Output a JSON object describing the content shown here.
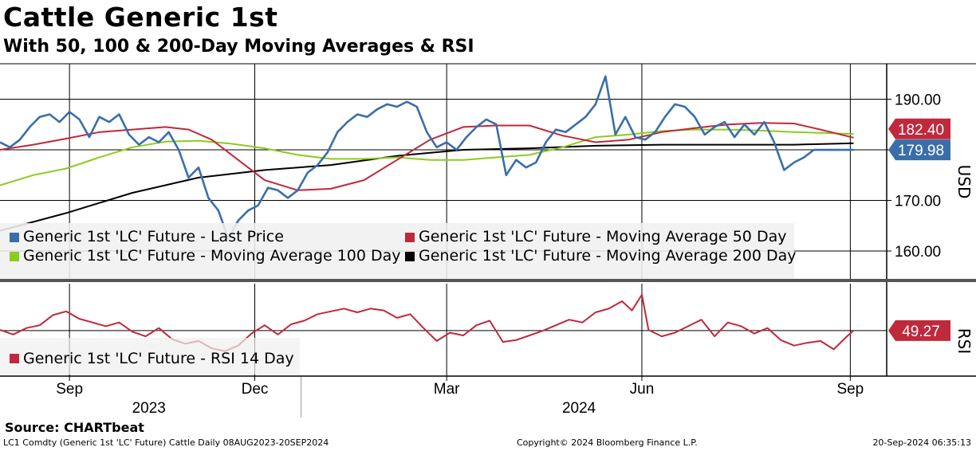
{
  "header": {
    "title": "Cattle Generic 1st",
    "subtitle": "With 50, 100 & 200-Day Moving Averages & RSI"
  },
  "footer": {
    "source": "Source: CHARTbeat",
    "ticker_info": "LC1 Comdty (Generic 1st 'LC' Future) Cattle  Daily 08AUG2023-20SEP2024",
    "copyright": "Copyright© 2024 Bloomberg Finance L.P.",
    "timestamp": "20-Sep-2024 06:35:13"
  },
  "colors": {
    "last_price": "#3a6ea8",
    "ma50": "#c0283c",
    "ma100": "#8ccc1e",
    "ma200": "#000000",
    "rsi": "#c0283c",
    "rsi_fade": "#e8aab3"
  },
  "chart_data": [
    {
      "type": "line",
      "panel": "price",
      "ylabel": "USD",
      "ylim": [
        154.5,
        197
      ],
      "y_ticks": [
        "160.00",
        "170.00",
        "180.00",
        "190.00"
      ],
      "y_tick_values": [
        160,
        170,
        180,
        190
      ],
      "x_range": [
        0,
        13.4
      ],
      "x_unit": "months since 2023-08-08",
      "x_ticks": [
        {
          "label": "Sep",
          "x": 1.05
        },
        {
          "label": "Dec",
          "x": 3.85
        },
        {
          "label": "Mar",
          "x": 6.75
        },
        {
          "label": "Jun",
          "x": 9.7
        },
        {
          "label": "Sep",
          "x": 12.85
        }
      ],
      "year_labels": [
        {
          "label": "2023",
          "x": 2.25
        },
        {
          "label": "2024",
          "x": 8.75
        }
      ],
      "year_divider_x": 4.55,
      "legend": [
        "Generic 1st 'LC' Future - Last Price",
        "Generic 1st 'LC' Future - Moving Average 50 Day",
        "Generic 1st 'LC' Future - Moving Average 100 Day",
        "Generic 1st 'LC' Future - Moving Average 200 Day"
      ],
      "series": [
        {
          "name": "Generic 1st 'LC' Future - Last Price",
          "key": "last_price",
          "x": [
            0,
            0.15,
            0.3,
            0.45,
            0.6,
            0.75,
            0.9,
            1.05,
            1.2,
            1.35,
            1.5,
            1.65,
            1.8,
            1.95,
            2.1,
            2.25,
            2.4,
            2.55,
            2.7,
            2.85,
            3.0,
            3.15,
            3.3,
            3.45,
            3.6,
            3.75,
            3.9,
            4.05,
            4.2,
            4.35,
            4.5,
            4.65,
            4.8,
            4.95,
            5.1,
            5.25,
            5.4,
            5.55,
            5.7,
            5.85,
            6.0,
            6.15,
            6.3,
            6.45,
            6.6,
            6.75,
            6.9,
            7.05,
            7.2,
            7.35,
            7.5,
            7.65,
            7.8,
            7.95,
            8.1,
            8.25,
            8.4,
            8.55,
            8.7,
            8.85,
            9.0,
            9.15,
            9.3,
            9.45,
            9.6,
            9.75,
            9.9,
            10.05,
            10.2,
            10.35,
            10.5,
            10.65,
            10.8,
            10.95,
            11.1,
            11.25,
            11.4,
            11.55,
            11.7,
            11.85,
            12.0,
            12.15,
            12.3,
            12.45,
            12.6,
            12.75,
            12.9
          ],
          "values": [
            181.5,
            180.5,
            182.0,
            184.5,
            186.5,
            187.0,
            185.5,
            187.5,
            186.0,
            182.5,
            186.5,
            185.5,
            187.0,
            183.0,
            181.0,
            182.5,
            181.5,
            183.5,
            180.0,
            174.5,
            176.5,
            170.5,
            168.0,
            162.5,
            166.0,
            168.0,
            169.0,
            172.5,
            172.0,
            170.5,
            172.0,
            175.5,
            177.0,
            179.5,
            183.5,
            185.5,
            187.0,
            186.5,
            188.0,
            189.0,
            188.5,
            189.5,
            188.5,
            183.5,
            180.5,
            181.5,
            180.0,
            182.5,
            184.5,
            186.0,
            185.0,
            175.0,
            178.0,
            176.5,
            177.5,
            181.5,
            184.0,
            183.5,
            185.0,
            186.5,
            189.0,
            194.5,
            183.0,
            186.5,
            182.5,
            182.0,
            183.5,
            186.5,
            189.0,
            188.5,
            186.5,
            183.0,
            184.5,
            185.5,
            182.5,
            185.0,
            183.0,
            185.5,
            181.5,
            176.0,
            177.5,
            178.5,
            180.0,
            179.98,
            179.98,
            179.98,
            179.98
          ]
        },
        {
          "name": "Generic 1st 'LC' Future - Moving Average 50 Day",
          "key": "ma50",
          "x": [
            0,
            0.5,
            1.0,
            1.5,
            2.0,
            2.5,
            2.85,
            3.2,
            3.6,
            4.0,
            4.5,
            5.0,
            5.5,
            6.0,
            6.5,
            7.0,
            7.5,
            8.0,
            8.5,
            9.0,
            9.5,
            10.0,
            10.5,
            11.0,
            11.5,
            12.0,
            12.4,
            12.9
          ],
          "values": [
            180.0,
            181.0,
            182.2,
            183.5,
            184.0,
            184.5,
            184.0,
            182.0,
            178.0,
            174.0,
            172.0,
            172.3,
            174.0,
            178.0,
            182.0,
            184.5,
            184.8,
            184.8,
            182.8,
            181.5,
            182.0,
            183.5,
            184.3,
            185.0,
            185.3,
            185.2,
            184.0,
            182.4
          ]
        },
        {
          "name": "Generic 1st 'LC' Future - Moving Average 100 Day",
          "key": "ma100",
          "x": [
            0,
            0.5,
            1.0,
            1.5,
            2.0,
            2.5,
            3.0,
            3.5,
            4.0,
            4.5,
            5.0,
            5.5,
            6.0,
            6.5,
            7.0,
            7.5,
            8.0,
            8.5,
            9.0,
            9.5,
            10.0,
            10.5,
            11.0,
            11.5,
            12.0,
            12.5,
            12.9
          ],
          "values": [
            173.0,
            175.0,
            176.3,
            178.5,
            180.5,
            181.6,
            181.8,
            181.2,
            180.3,
            179.0,
            178.2,
            178.2,
            178.5,
            178.0,
            178.0,
            178.5,
            179.0,
            180.5,
            182.5,
            183.0,
            183.7,
            184.0,
            184.0,
            183.8,
            183.5,
            183.3,
            183.1
          ]
        },
        {
          "name": "Generic 1st 'LC' Future - Moving Average 200 Day",
          "key": "ma200",
          "x": [
            0,
            1.0,
            2.0,
            3.0,
            4.0,
            5.0,
            6.0,
            7.0,
            8.0,
            9.0,
            10.0,
            11.0,
            12.0,
            12.9
          ],
          "values": [
            164.0,
            167.5,
            171.5,
            174.5,
            176.0,
            177.0,
            178.8,
            180.0,
            180.3,
            180.8,
            181.0,
            181.0,
            181.0,
            181.3
          ]
        }
      ],
      "value_labels": [
        {
          "series": "ma50",
          "text": "182.40",
          "value": 182.4
        },
        {
          "series": "last_price",
          "text": "179.98",
          "value": 179.98
        }
      ]
    },
    {
      "type": "line",
      "panel": "rsi",
      "ylabel": "RSI",
      "ylim": [
        0,
        100
      ],
      "legend": [
        "Generic 1st 'LC' Future - RSI 14 Day"
      ],
      "reference_line": 49.27,
      "series": [
        {
          "name": "Generic 1st 'LC' Future - RSI 14 Day",
          "key": "rsi",
          "x": [
            0,
            0.2,
            0.4,
            0.6,
            0.8,
            1.0,
            1.2,
            1.4,
            1.6,
            1.8,
            2.0,
            2.2,
            2.4,
            2.6,
            2.8,
            3.0,
            3.2,
            3.4,
            3.6,
            3.8,
            4.0,
            4.2,
            4.4,
            4.6,
            4.8,
            5.0,
            5.2,
            5.4,
            5.6,
            5.8,
            6.0,
            6.2,
            6.4,
            6.6,
            6.8,
            7.0,
            7.2,
            7.4,
            7.6,
            7.8,
            8.0,
            8.2,
            8.4,
            8.6,
            8.8,
            9.0,
            9.2,
            9.4,
            9.55,
            9.7,
            9.8,
            10.0,
            10.2,
            10.4,
            10.6,
            10.8,
            11.0,
            11.2,
            11.4,
            11.6,
            11.8,
            12.0,
            12.2,
            12.4,
            12.6,
            12.8,
            12.9
          ],
          "values": [
            50,
            45,
            52,
            55,
            66,
            70,
            62,
            58,
            54,
            58,
            48,
            43,
            52,
            40,
            35,
            38,
            30,
            27,
            33,
            46,
            55,
            45,
            56,
            60,
            67,
            70,
            73,
            69,
            73,
            71,
            63,
            67,
            52,
            38,
            47,
            44,
            55,
            60,
            37,
            39,
            44,
            49,
            55,
            61,
            58,
            69,
            73,
            81,
            71,
            88,
            50,
            43,
            47,
            54,
            61,
            43,
            58,
            54,
            46,
            52,
            39,
            33,
            36,
            38,
            29,
            43,
            49.27
          ]
        }
      ]
    }
  ]
}
